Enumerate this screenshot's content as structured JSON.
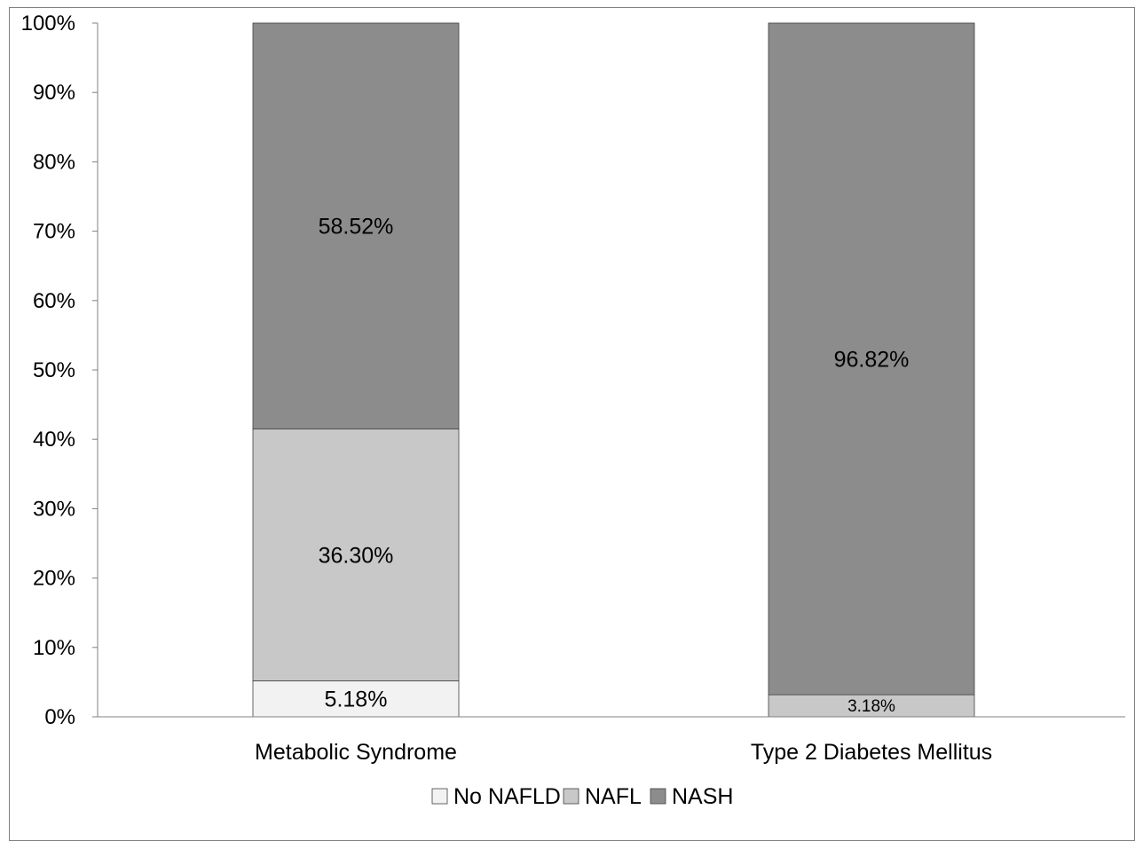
{
  "chart_data": {
    "type": "bar",
    "stacked": true,
    "categories": [
      "Metabolic Syndrome",
      "Type 2 Diabetes Mellitus"
    ],
    "series": [
      {
        "name": "No NAFLD",
        "values": [
          5.18,
          0
        ],
        "labels": [
          "5.18%",
          ""
        ],
        "color": "#f2f2f2"
      },
      {
        "name": "NAFL",
        "values": [
          36.3,
          3.18
        ],
        "labels": [
          "36.30%",
          "3.18%"
        ],
        "color": "#c8c8c8"
      },
      {
        "name": "NASH",
        "values": [
          58.52,
          96.82
        ],
        "labels": [
          "58.52%",
          "96.82%"
        ],
        "color": "#8c8c8c"
      }
    ],
    "ylim": [
      0,
      100
    ],
    "yticks": [
      "0%",
      "10%",
      "20%",
      "30%",
      "40%",
      "50%",
      "60%",
      "70%",
      "80%",
      "90%",
      "100%"
    ],
    "grid": false,
    "legend_position": "bottom",
    "title": "",
    "xlabel": "",
    "ylabel": ""
  }
}
